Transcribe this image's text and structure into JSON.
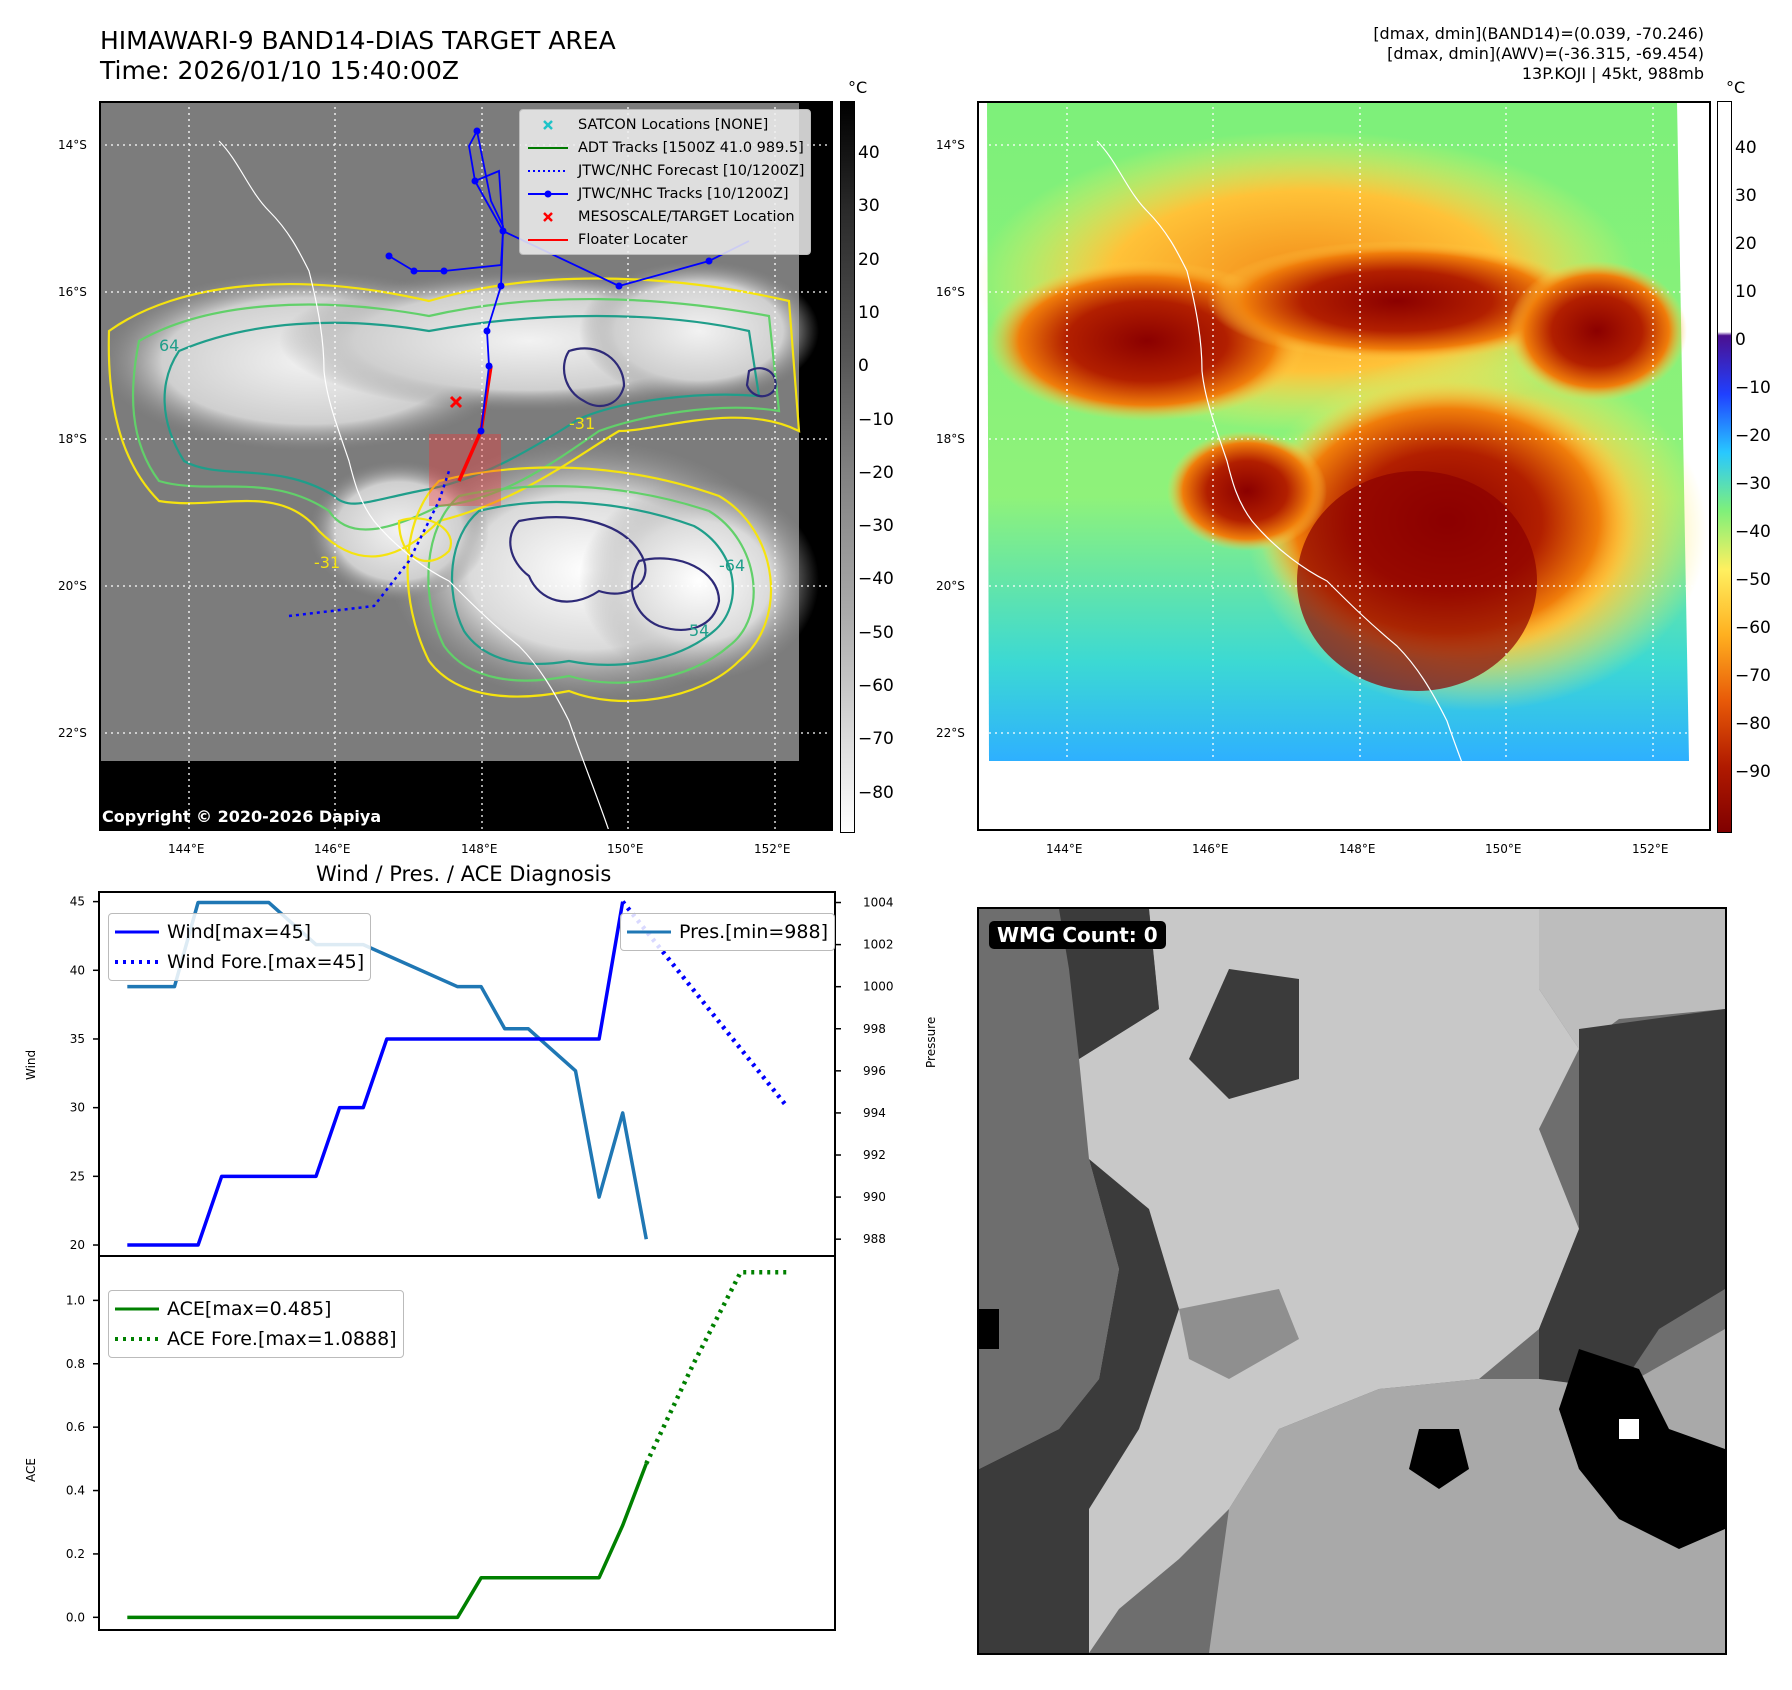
{
  "header": {
    "title_line1": "HIMAWARI-9 BAND14-DIAS TARGET AREA",
    "title_line2": "Time: 2026/01/10 15:40:00Z",
    "dmax_band14": "[dmax, dmin](BAND14)=(0.039, -70.246)",
    "dmax_awv": "[dmax, dmin](AWV)=(-36.315, -69.454)",
    "storm_info": "13P.KOJI | 45kt, 988mb"
  },
  "maps": {
    "lat_labels": [
      "14°S",
      "16°S",
      "18°S",
      "20°S",
      "22°S"
    ],
    "lon_labels": [
      "144°E",
      "146°E",
      "148°E",
      "150°E",
      "152°E"
    ],
    "copyright": "Copyright © 2020-2026 Dapiya",
    "contour_labels": [
      "64",
      "-31",
      "-31",
      "-64",
      "54"
    ]
  },
  "colorbar_left": {
    "unit": "°C",
    "ticks": [
      "40",
      "30",
      "20",
      "10",
      "0",
      "−10",
      "−20",
      "−30",
      "−40",
      "−50",
      "−60",
      "−70",
      "−80"
    ]
  },
  "colorbar_right": {
    "unit": "°C",
    "ticks": [
      "40",
      "30",
      "20",
      "10",
      "0",
      "−10",
      "−20",
      "−30",
      "−40",
      "−50",
      "−60",
      "−70",
      "−80",
      "−90"
    ]
  },
  "map_legend": {
    "items": [
      {
        "label": "SATCON Locations [NONE]",
        "color": "#1ec3c8"
      },
      {
        "label": "ADT Tracks [1500Z 41.0 989.5]",
        "color": "#007a00"
      },
      {
        "label": "JTWC/NHC Forecast [10/1200Z]",
        "color": "#0000ff"
      },
      {
        "label": "JTWC/NHC Tracks [10/1200Z]",
        "color": "#0000ff"
      },
      {
        "label": "MESOSCALE/TARGET Location",
        "color": "#ff0000"
      },
      {
        "label": "Floater Locater",
        "color": "#ff0000"
      }
    ]
  },
  "wmg": {
    "label": "WMG Count: 0"
  },
  "chart_data": [
    {
      "type": "line",
      "title": "Wind / Pres. / ACE Diagnosis",
      "ylabel": "Wind",
      "ylabel_right": "Pressure",
      "ylim": [
        19.2,
        45.7
      ],
      "ylim_right": [
        987.2,
        1004.5
      ],
      "yticks": [
        20,
        25,
        30,
        35,
        40,
        45
      ],
      "yticks_right": [
        988,
        990,
        992,
        994,
        996,
        998,
        1000,
        1002,
        1004
      ],
      "x": [
        0,
        1,
        2,
        3,
        4,
        5,
        6,
        7,
        8,
        9,
        10,
        11,
        12,
        13,
        14,
        15,
        16,
        17,
        18,
        19,
        20,
        21,
        22,
        23,
        24,
        25,
        26,
        27,
        28
      ],
      "series": [
        {
          "name": "Wind[max=45]",
          "color": "#0000ff",
          "style": "solid",
          "x": [
            0,
            3,
            4,
            8,
            9,
            10,
            11,
            20,
            21
          ],
          "values": [
            20,
            20,
            25,
            25,
            30,
            30,
            35,
            35,
            45
          ]
        },
        {
          "name": "Wind Fore.[max=45]",
          "color": "#0000ff",
          "style": "dotted",
          "x": [
            21,
            28
          ],
          "values": [
            45,
            30
          ]
        },
        {
          "name": "Pres.[min=988]",
          "color": "#1f77b4",
          "style": "solid",
          "axis": "right",
          "x": [
            0,
            2,
            3,
            6,
            8,
            10,
            14,
            15,
            16,
            17,
            19,
            20,
            21,
            22
          ],
          "values": [
            1000,
            1000,
            1004,
            1004,
            1002,
            1002,
            1000,
            1000,
            998,
            998,
            996,
            990,
            994,
            988
          ]
        }
      ]
    },
    {
      "type": "line",
      "ylabel": "ACE",
      "ylim": [
        -0.04,
        1.14
      ],
      "yticks": [
        0.0,
        0.2,
        0.4,
        0.6,
        0.8,
        1.0
      ],
      "ytick_labels": [
        "0.0",
        "0.2",
        "0.4",
        "0.6",
        "0.8",
        "1.0"
      ],
      "series": [
        {
          "name": "ACE[max=0.485]",
          "color": "#008000",
          "style": "solid",
          "x": [
            0,
            14,
            15,
            20,
            21,
            22
          ],
          "values": [
            0.0,
            0.0,
            0.125,
            0.125,
            0.29,
            0.485
          ]
        },
        {
          "name": "ACE Fore.[max=1.0888]",
          "color": "#008000",
          "style": "dotted",
          "x": [
            22,
            24,
            26,
            28
          ],
          "values": [
            0.485,
            0.8,
            1.0888,
            1.0888
          ]
        }
      ]
    }
  ]
}
